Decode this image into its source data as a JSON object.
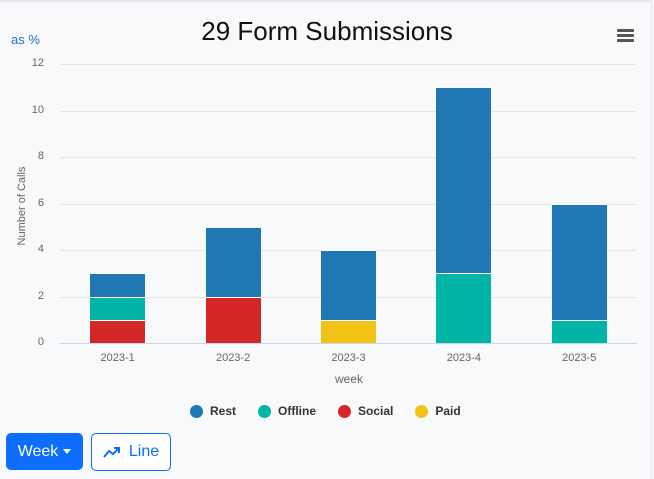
{
  "header": {
    "title": "29 Form Submissions",
    "as_percent_label": "as %",
    "menu_icon": "hamburger-menu-icon"
  },
  "controls": {
    "period_label": "Week",
    "chart_type_label": "Line",
    "chart_type_icon": "trending-up-icon"
  },
  "colors": {
    "Rest": "#1f77b4",
    "Offline": "#00b5a5",
    "Social": "#d62728",
    "Paid": "#f2c314",
    "primary": "#0d6efd"
  },
  "chart_data": {
    "type": "bar",
    "stacked": true,
    "title": "29 Form Submissions",
    "xlabel": "week",
    "ylabel": "Number of Calls",
    "ylim": [
      0,
      12
    ],
    "yticks": [
      0,
      2,
      4,
      6,
      8,
      10,
      12
    ],
    "grid": true,
    "legend_position": "bottom",
    "categories": [
      "2023-1",
      "2023-2",
      "2023-3",
      "2023-4",
      "2023-5"
    ],
    "series": [
      {
        "name": "Rest",
        "color": "#1f77b4",
        "values": [
          1,
          3,
          3,
          8,
          5
        ]
      },
      {
        "name": "Offline",
        "color": "#00b5a5",
        "values": [
          1,
          0,
          0,
          3,
          1
        ]
      },
      {
        "name": "Social",
        "color": "#d62728",
        "values": [
          1,
          2,
          0,
          0,
          0
        ]
      },
      {
        "name": "Paid",
        "color": "#f2c314",
        "values": [
          0,
          0,
          1,
          0,
          0
        ]
      }
    ]
  }
}
